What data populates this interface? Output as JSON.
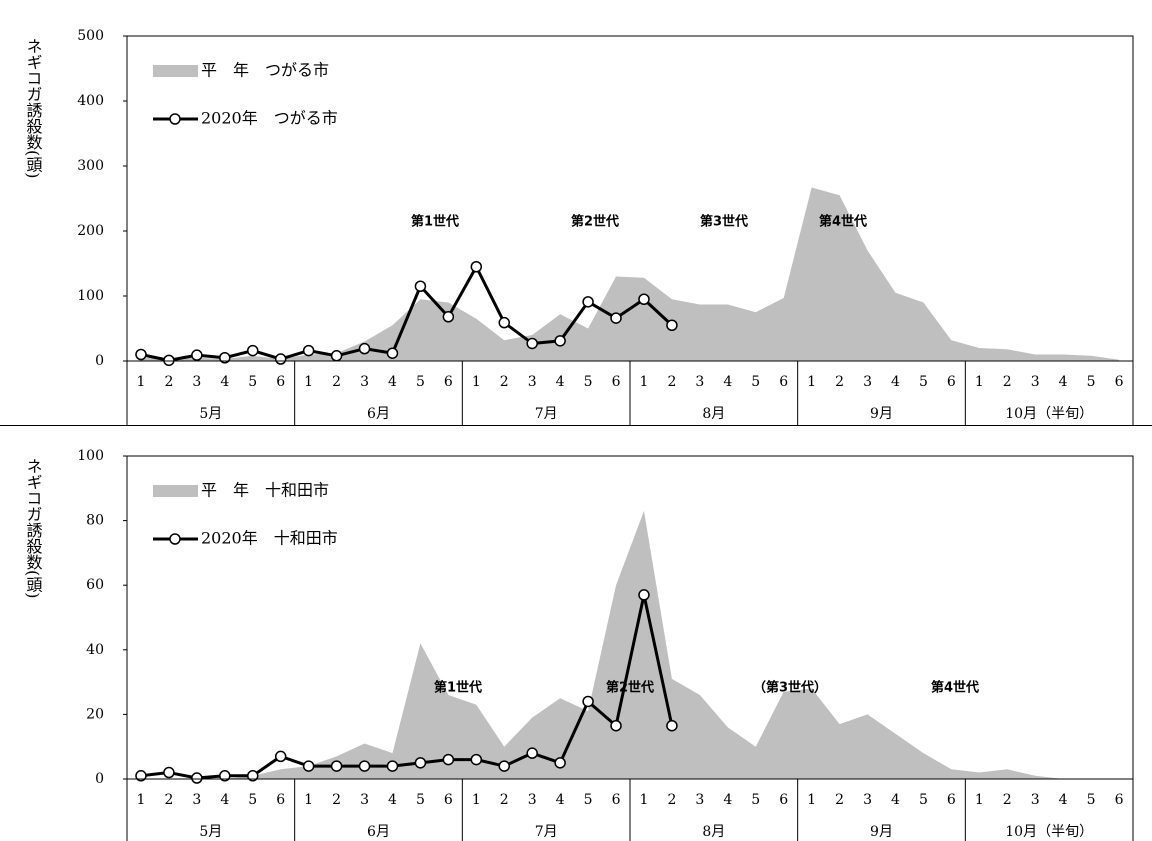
{
  "chart_data": [
    {
      "type": "area-line",
      "y_label": "ネギコガ誘殺数(頭)",
      "categories": [
        "1",
        "2",
        "3",
        "4",
        "5",
        "6",
        "1",
        "2",
        "3",
        "4",
        "5",
        "6",
        "1",
        "2",
        "3",
        "4",
        "5",
        "6",
        "1",
        "2",
        "3",
        "4",
        "5",
        "6",
        "1",
        "2",
        "3",
        "4",
        "5",
        "6",
        "1",
        "2",
        "3",
        "4",
        "5",
        "6"
      ],
      "month_labels": [
        "5月",
        "6月",
        "7月",
        "8月",
        "9月",
        "10月（半旬）"
      ],
      "ylim": [
        0,
        500
      ],
      "yticks": [
        0,
        100,
        200,
        300,
        400,
        500
      ],
      "series": [
        {
          "name": "平　年　つがる市",
          "kind": "area",
          "color": "#bfbfbf",
          "values": [
            5,
            3,
            5,
            3,
            8,
            3,
            10,
            12,
            30,
            55,
            95,
            90,
            65,
            32,
            40,
            72,
            50,
            130,
            128,
            95,
            87,
            87,
            75,
            97,
            267,
            255,
            170,
            105,
            90,
            32,
            20,
            18,
            10,
            10,
            8,
            2
          ]
        },
        {
          "name": "2020年　つがる市",
          "kind": "line",
          "color": "#000000",
          "values": [
            10,
            1,
            9,
            5,
            16,
            3,
            16,
            8,
            19,
            12,
            115,
            68,
            145,
            59,
            27,
            31,
            91,
            66,
            95,
            55,
            null,
            null,
            null,
            null,
            null,
            null,
            null,
            null,
            null,
            null,
            null,
            null,
            null,
            null,
            null,
            null
          ]
        }
      ],
      "annotations": [
        "第1世代",
        "第2世代",
        "第3世代",
        "第4世代"
      ]
    },
    {
      "type": "area-line",
      "y_label": "ネギコガ誘殺数(頭)",
      "categories": [
        "1",
        "2",
        "3",
        "4",
        "5",
        "6",
        "1",
        "2",
        "3",
        "4",
        "5",
        "6",
        "1",
        "2",
        "3",
        "4",
        "5",
        "6",
        "1",
        "2",
        "3",
        "4",
        "5",
        "6",
        "1",
        "2",
        "3",
        "4",
        "5",
        "6",
        "1",
        "2",
        "3",
        "4",
        "5",
        "6"
      ],
      "month_labels": [
        "5月",
        "6月",
        "7月",
        "8月",
        "9月",
        "10月（半旬）"
      ],
      "ylim": [
        0,
        100
      ],
      "yticks": [
        0,
        20,
        40,
        60,
        80,
        100
      ],
      "series": [
        {
          "name": "平　年　十和田市",
          "kind": "area",
          "color": "#bfbfbf",
          "values": [
            0,
            0,
            0,
            0,
            1,
            3,
            4,
            7,
            11,
            8,
            42,
            26,
            23,
            10,
            19,
            25,
            21,
            60,
            83,
            31,
            26,
            16,
            10,
            27,
            28,
            17,
            20,
            14,
            8,
            3,
            2,
            3,
            1,
            0,
            0,
            0
          ]
        },
        {
          "name": "2020年　十和田市",
          "kind": "line",
          "color": "#000000",
          "values": [
            1,
            2,
            0.3,
            1,
            1,
            7,
            4,
            4,
            4,
            4,
            5,
            6,
            6,
            4,
            8,
            5,
            24,
            16.5,
            57,
            16.5,
            null,
            null,
            null,
            null,
            null,
            null,
            null,
            null,
            null,
            null,
            null,
            null,
            null,
            null,
            null,
            null
          ]
        }
      ],
      "annotations": [
        "第1世代",
        "第2世代",
        "（第3世代）",
        "第4世代"
      ]
    }
  ]
}
